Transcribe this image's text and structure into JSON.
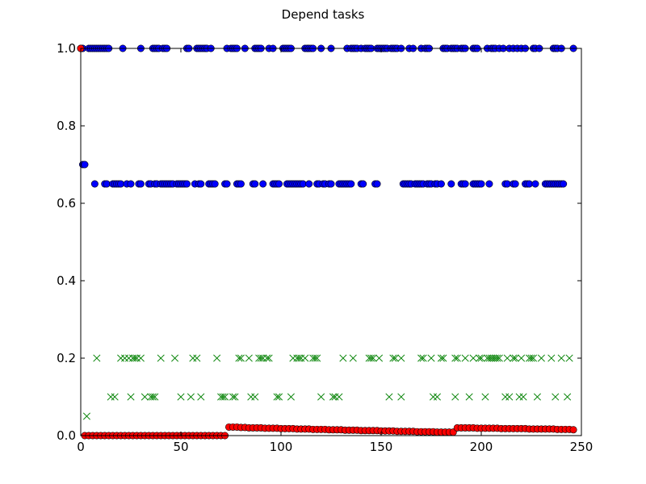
{
  "chart_data": {
    "type": "scatter",
    "title": "Depend tasks",
    "xlabel": "",
    "ylabel": "",
    "xlim": [
      0,
      250
    ],
    "ylim": [
      0,
      1.0
    ],
    "x_ticks": [
      0,
      50,
      100,
      150,
      200,
      250
    ],
    "x_tick_labels": [
      "0",
      "50",
      "100",
      "150",
      "200",
      "250"
    ],
    "y_ticks": [
      0.0,
      0.2,
      0.4,
      0.6,
      0.8,
      1.0
    ],
    "y_tick_labels": [
      "0.0",
      "0.2",
      "0.4",
      "0.6",
      "0.8",
      "1.0"
    ],
    "grid": false,
    "series": [
      {
        "marker": "circle",
        "color": "#0000ff",
        "x": [
          0,
          1,
          4,
          5,
          6,
          7,
          8,
          9,
          10,
          11,
          12,
          13,
          14,
          21,
          30,
          36,
          37,
          38,
          39,
          41,
          42,
          43,
          53,
          54,
          58,
          59,
          60,
          61,
          62,
          63,
          65,
          73,
          75,
          76,
          77,
          78,
          82,
          87,
          88,
          89,
          90,
          94,
          96,
          101,
          102,
          103,
          104,
          105,
          112,
          113,
          114,
          115,
          116,
          120,
          125,
          133,
          135,
          136,
          137,
          138,
          140,
          142,
          143,
          144,
          145,
          148,
          149,
          150,
          151,
          152,
          153,
          155,
          156,
          157,
          158,
          160,
          164,
          166,
          170,
          172,
          173,
          174,
          181,
          182,
          183,
          185,
          186,
          187,
          188,
          190,
          191,
          192,
          196,
          197,
          198,
          203,
          205,
          206,
          207,
          209,
          211,
          214,
          216,
          218,
          220,
          222,
          226,
          227,
          229,
          236,
          237,
          238,
          240,
          246,
          1,
          2,
          7,
          12,
          13,
          16,
          17,
          18,
          19,
          20,
          23,
          25,
          29,
          30,
          34,
          35,
          37,
          38,
          40,
          41,
          42,
          43,
          44,
          45,
          46,
          48,
          49,
          50,
          51,
          52,
          53,
          57,
          59,
          60,
          64,
          65,
          66,
          67,
          72,
          73,
          78,
          79,
          80,
          86,
          87,
          91,
          96,
          97,
          98,
          99,
          103,
          104,
          105,
          106,
          107,
          108,
          109,
          110,
          111,
          114,
          118,
          119,
          121,
          122,
          124,
          125,
          129,
          130,
          131,
          132,
          133,
          134,
          135,
          140,
          141,
          147,
          148,
          161,
          162,
          163,
          164,
          165,
          167,
          168,
          169,
          170,
          171,
          173,
          174,
          175,
          177,
          178,
          180,
          185,
          190,
          191,
          192,
          196,
          197,
          198,
          199,
          200,
          204,
          212,
          213,
          216,
          217,
          222,
          223,
          224,
          227,
          232,
          233,
          234,
          235,
          236,
          237,
          238,
          239,
          240,
          241
        ],
        "y": [
          1,
          1,
          1,
          1,
          1,
          1,
          1,
          1,
          1,
          1,
          1,
          1,
          1,
          1,
          1,
          1,
          1,
          1,
          1,
          1,
          1,
          1,
          1,
          1,
          1,
          1,
          1,
          1,
          1,
          1,
          1,
          1,
          1,
          1,
          1,
          1,
          1,
          1,
          1,
          1,
          1,
          1,
          1,
          1,
          1,
          1,
          1,
          1,
          1,
          1,
          1,
          1,
          1,
          1,
          1,
          1,
          1,
          1,
          1,
          1,
          1,
          1,
          1,
          1,
          1,
          1,
          1,
          1,
          1,
          1,
          1,
          1,
          1,
          1,
          1,
          1,
          1,
          1,
          1,
          1,
          1,
          1,
          1,
          1,
          1,
          1,
          1,
          1,
          1,
          1,
          1,
          1,
          1,
          1,
          1,
          1,
          1,
          1,
          1,
          1,
          1,
          1,
          1,
          1,
          1,
          1,
          1,
          1,
          1,
          1,
          1,
          1,
          1,
          1,
          0.7,
          0.7,
          0.65,
          0.65,
          0.65,
          0.65,
          0.65,
          0.65,
          0.65,
          0.65,
          0.65,
          0.65,
          0.65,
          0.65,
          0.65,
          0.65,
          0.65,
          0.65,
          0.65,
          0.65,
          0.65,
          0.65,
          0.65,
          0.65,
          0.65,
          0.65,
          0.65,
          0.65,
          0.65,
          0.65,
          0.65,
          0.65,
          0.65,
          0.65,
          0.65,
          0.65,
          0.65,
          0.65,
          0.65,
          0.65,
          0.65,
          0.65,
          0.65,
          0.65,
          0.65,
          0.65,
          0.65,
          0.65,
          0.65,
          0.65,
          0.65,
          0.65,
          0.65,
          0.65,
          0.65,
          0.65,
          0.65,
          0.65,
          0.65,
          0.65,
          0.65,
          0.65,
          0.65,
          0.65,
          0.65,
          0.65,
          0.65,
          0.65,
          0.65,
          0.65,
          0.65,
          0.65,
          0.65,
          0.65,
          0.65,
          0.65,
          0.65,
          0.65,
          0.65,
          0.65,
          0.65,
          0.65,
          0.65,
          0.65,
          0.65,
          0.65,
          0.65,
          0.65,
          0.65,
          0.65,
          0.65,
          0.65,
          0.65,
          0.65,
          0.65,
          0.65,
          0.65,
          0.65,
          0.65,
          0.65,
          0.65,
          0.65,
          0.65,
          0.65,
          0.65,
          0.65,
          0.65,
          0.65,
          0.65,
          0.65,
          0.65,
          0.65,
          0.65,
          0.65,
          0.65,
          0.65,
          0.65,
          0.65,
          0.65,
          0.65,
          0.65
        ]
      },
      {
        "marker": "x",
        "color": "#008000",
        "x": [
          3,
          8,
          20,
          22,
          24,
          26,
          27,
          28,
          30,
          40,
          47,
          56,
          58,
          68,
          79,
          80,
          84,
          89,
          90,
          91,
          93,
          94,
          106,
          108,
          109,
          110,
          112,
          116,
          117,
          118,
          131,
          136,
          144,
          145,
          146,
          149,
          156,
          157,
          160,
          170,
          171,
          175,
          180,
          181,
          187,
          188,
          192,
          196,
          199,
          200,
          203,
          204,
          205,
          206,
          207,
          208,
          209,
          213,
          216,
          217,
          220,
          224,
          225,
          226,
          230,
          235,
          240,
          244,
          15,
          17,
          25,
          32,
          35,
          36,
          37,
          50,
          55,
          60,
          70,
          71,
          72,
          76,
          77,
          85,
          87,
          98,
          99,
          105,
          120,
          126,
          127,
          129,
          154,
          160,
          176,
          178,
          187,
          194,
          202,
          212,
          214,
          219,
          221,
          228,
          237,
          243
        ],
        "y": [
          0.05,
          0.2,
          0.2,
          0.2,
          0.2,
          0.2,
          0.2,
          0.2,
          0.2,
          0.2,
          0.2,
          0.2,
          0.2,
          0.2,
          0.2,
          0.2,
          0.2,
          0.2,
          0.2,
          0.2,
          0.2,
          0.2,
          0.2,
          0.2,
          0.2,
          0.2,
          0.2,
          0.2,
          0.2,
          0.2,
          0.2,
          0.2,
          0.2,
          0.2,
          0.2,
          0.2,
          0.2,
          0.2,
          0.2,
          0.2,
          0.2,
          0.2,
          0.2,
          0.2,
          0.2,
          0.2,
          0.2,
          0.2,
          0.2,
          0.2,
          0.2,
          0.2,
          0.2,
          0.2,
          0.2,
          0.2,
          0.2,
          0.2,
          0.2,
          0.2,
          0.2,
          0.2,
          0.2,
          0.2,
          0.2,
          0.2,
          0.2,
          0.2,
          0.1,
          0.1,
          0.1,
          0.1,
          0.1,
          0.1,
          0.1,
          0.1,
          0.1,
          0.1,
          0.1,
          0.1,
          0.1,
          0.1,
          0.1,
          0.1,
          0.1,
          0.1,
          0.1,
          0.1,
          0.1,
          0.1,
          0.1,
          0.1,
          0.1,
          0.1,
          0.1,
          0.1,
          0.1,
          0.1,
          0.1,
          0.1,
          0.1,
          0.1,
          0.1,
          0.1,
          0.1,
          0.1
        ]
      },
      {
        "marker": "circle",
        "color": "#ff0000",
        "x": [
          0,
          2,
          4,
          6,
          8,
          10,
          12,
          14,
          16,
          18,
          20,
          22,
          24,
          26,
          28,
          30,
          32,
          34,
          36,
          38,
          40,
          42,
          44,
          46,
          48,
          50,
          52,
          54,
          56,
          58,
          60,
          62,
          64,
          66,
          68,
          70,
          72,
          74,
          76,
          78,
          80,
          82,
          84,
          86,
          88,
          90,
          92,
          94,
          96,
          98,
          100,
          102,
          104,
          106,
          108,
          110,
          112,
          114,
          116,
          118,
          120,
          122,
          124,
          126,
          128,
          130,
          132,
          134,
          136,
          138,
          140,
          142,
          144,
          146,
          148,
          150,
          152,
          154,
          156,
          158,
          160,
          162,
          164,
          166,
          168,
          170,
          172,
          174,
          176,
          178,
          180,
          182,
          184,
          186,
          188,
          190,
          192,
          194,
          196,
          198,
          200,
          202,
          204,
          206,
          208,
          210,
          212,
          214,
          216,
          218,
          220,
          222,
          224,
          226,
          228,
          230,
          232,
          234,
          236,
          238,
          240,
          242,
          244,
          246
        ],
        "y": [
          1.0,
          0.0,
          0.0,
          0.0,
          0.0,
          0.0,
          0.0,
          0.0,
          0.0,
          0.0,
          0.0,
          0.0,
          0.0,
          0.0,
          0.0,
          0.0,
          0.0,
          0.0,
          0.0,
          0.0,
          0.0,
          0.0,
          0.0,
          0.0,
          0.0,
          0.0,
          0.0,
          0.0,
          0.0,
          0.0,
          0.0,
          0.0,
          0.0,
          0.0,
          0.0,
          0.0,
          0.0,
          0.022,
          0.022,
          0.022,
          0.021,
          0.021,
          0.02,
          0.02,
          0.02,
          0.02,
          0.019,
          0.019,
          0.019,
          0.019,
          0.018,
          0.018,
          0.018,
          0.018,
          0.017,
          0.017,
          0.017,
          0.017,
          0.016,
          0.016,
          0.016,
          0.016,
          0.015,
          0.015,
          0.015,
          0.015,
          0.014,
          0.014,
          0.014,
          0.014,
          0.013,
          0.013,
          0.013,
          0.013,
          0.013,
          0.012,
          0.012,
          0.012,
          0.012,
          0.011,
          0.011,
          0.011,
          0.011,
          0.011,
          0.01,
          0.01,
          0.01,
          0.01,
          0.01,
          0.009,
          0.009,
          0.009,
          0.009,
          0.009,
          0.02,
          0.02,
          0.02,
          0.02,
          0.02,
          0.019,
          0.019,
          0.019,
          0.019,
          0.019,
          0.019,
          0.018,
          0.018,
          0.018,
          0.018,
          0.018,
          0.018,
          0.018,
          0.017,
          0.017,
          0.017,
          0.017,
          0.017,
          0.017,
          0.017,
          0.016,
          0.016,
          0.016,
          0.016,
          0.015
        ]
      }
    ]
  }
}
